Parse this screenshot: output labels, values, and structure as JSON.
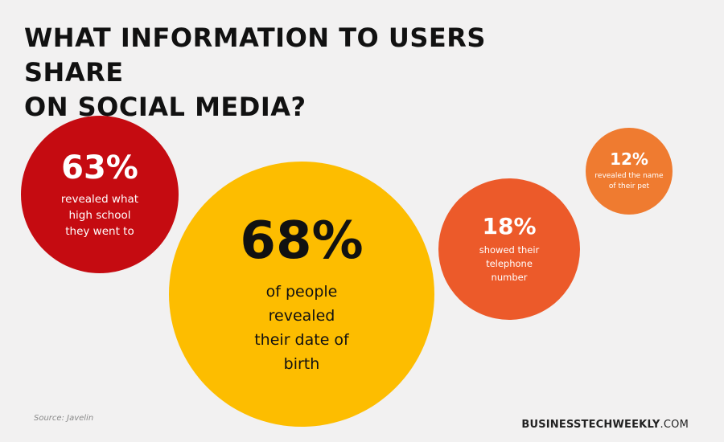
{
  "title": {
    "line1": "WHAT INFORMATION TO USERS SHARE",
    "line2": "ON SOCIAL MEDIA?"
  },
  "chart_data": {
    "type": "bubble",
    "title": "WHAT INFORMATION TO USERS SHARE ON SOCIAL MEDIA?",
    "series": [
      {
        "value": 63,
        "label": "63%",
        "description": [
          "revealed what",
          "high school",
          "they went to"
        ],
        "color": "#c50b11"
      },
      {
        "value": 68,
        "label": "68%",
        "description": [
          "of people",
          "revealed",
          "their date of",
          "birth"
        ],
        "color": "#fdbd00"
      },
      {
        "value": 18,
        "label": "18%",
        "description": [
          "showed their",
          "telephone",
          "number"
        ],
        "color": "#ec5a2a"
      },
      {
        "value": 12,
        "label": "12%",
        "description": [
          "revealed the name",
          "of their pet"
        ],
        "color": "#ef7b30"
      }
    ]
  },
  "footer": {
    "source": "Source: Javelin",
    "brand_bold": "BUSINESSTECHWEEKLY",
    "brand_suffix": ".COM"
  }
}
